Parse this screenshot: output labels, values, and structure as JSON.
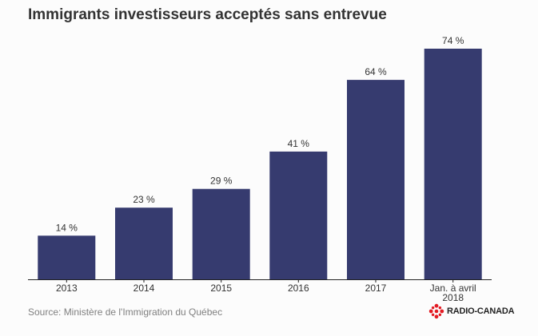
{
  "title": "Immigrants investisseurs acceptés sans entrevue",
  "source": "Source: Ministère de l'Immigration du Québec",
  "brand": {
    "name": "RADIO-CANADA",
    "logo_icon": "radio-canada-gem-icon",
    "logo_color": "#e31b23"
  },
  "colors": {
    "bar": "#363b6f",
    "axis": "#222222",
    "label": "#333333"
  },
  "chart_data": {
    "type": "bar",
    "title": "Immigrants investisseurs acceptés sans entrevue",
    "xlabel": "",
    "ylabel": "",
    "ylim": [
      0,
      80
    ],
    "grid": false,
    "categories": [
      "2013",
      "2014",
      "2015",
      "2016",
      "2017",
      "Jan. à avril 2018"
    ],
    "category_lines": [
      [
        "2013"
      ],
      [
        "2014"
      ],
      [
        "2015"
      ],
      [
        "2016"
      ],
      [
        "2017"
      ],
      [
        "Jan. à avril",
        "2018"
      ]
    ],
    "values": [
      14,
      23,
      29,
      41,
      64,
      74
    ],
    "value_labels": [
      "14 %",
      "23 %",
      "29 %",
      "41 %",
      "64 %",
      "74 %"
    ]
  }
}
